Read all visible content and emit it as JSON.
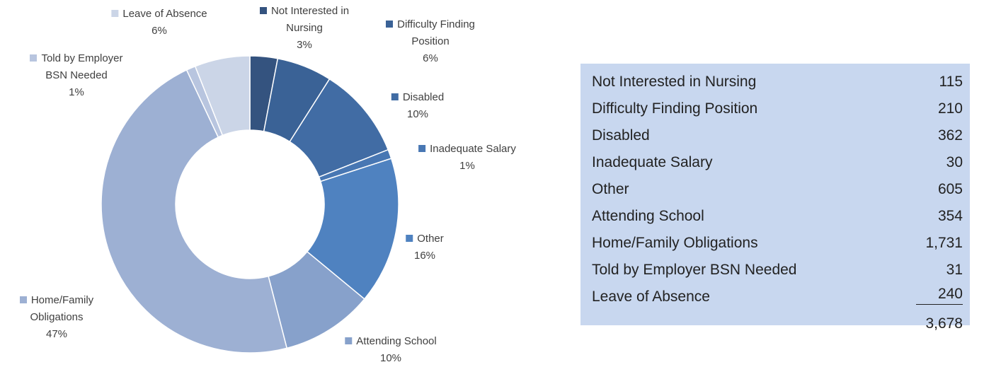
{
  "chart_data": {
    "type": "donut",
    "categories": [
      "Not Interested in Nursing",
      "Difficulty Finding Position",
      "Disabled",
      "Inadequate Salary",
      "Other",
      "Attending School",
      "Home/Family Obligations",
      "Told by Employer BSN Needed",
      "Leave of Absence"
    ],
    "values": [
      3,
      6,
      10,
      1,
      16,
      10,
      47,
      1,
      6
    ],
    "value_labels": [
      "3%",
      "6%",
      "10%",
      "1%",
      "16%",
      "10%",
      "47%",
      "1%",
      "6%"
    ],
    "colors": [
      "#34537f",
      "#3a6296",
      "#416ca4",
      "#4877b3",
      "#4f82c0",
      "#87a1cb",
      "#9db0d3",
      "#b8c5df",
      "#cbd5e7"
    ]
  },
  "table": {
    "rows": [
      [
        "Not Interested in Nursing",
        "115"
      ],
      [
        "Difficulty Finding Position",
        "210"
      ],
      [
        "Disabled",
        "362"
      ],
      [
        "Inadequate Salary",
        "30"
      ],
      [
        "Other",
        "605"
      ],
      [
        "Attending School",
        "354"
      ],
      [
        "Home/Family Obligations",
        "1,731"
      ],
      [
        "Told by Employer BSN Needed",
        "31"
      ],
      [
        "Leave of Absence",
        "240"
      ]
    ],
    "total": "3,678"
  }
}
